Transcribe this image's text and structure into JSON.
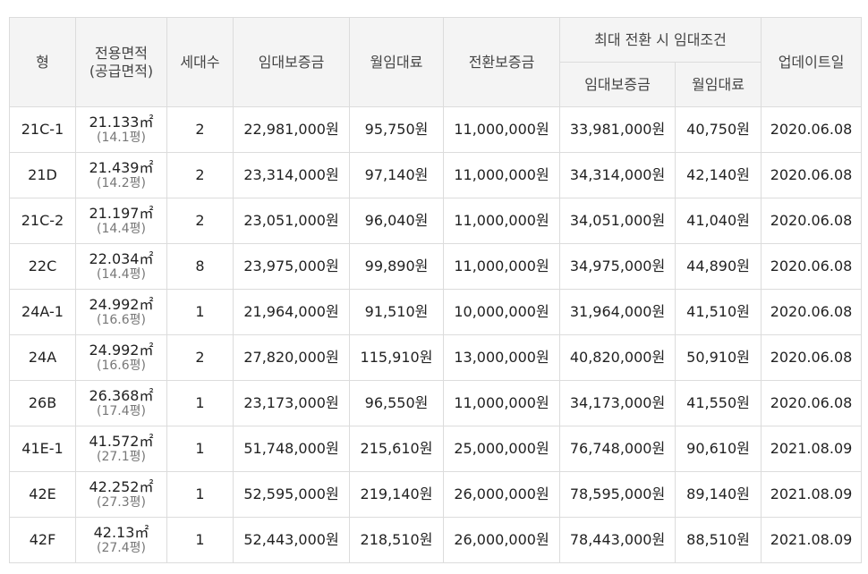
{
  "headers": {
    "type": "형",
    "area_line1": "전용면적",
    "area_line2": "(공급면적)",
    "households": "세대수",
    "deposit": "임대보증금",
    "monthly": "월임대료",
    "conversion_deposit": "전환보증금",
    "max_conversion_group": "최대 전환 시 임대조건",
    "max_deposit": "임대보증금",
    "max_monthly": "월임대료",
    "updated": "업데이트일"
  },
  "rows": [
    {
      "type": "21C-1",
      "area": "21.133㎡",
      "supply": "(14.1평)",
      "households": "2",
      "deposit": "22,981,000원",
      "monthly": "95,750원",
      "conversion": "11,000,000원",
      "max_deposit": "33,981,000원",
      "max_monthly": "40,750원",
      "updated": "2020.06.08"
    },
    {
      "type": "21D",
      "area": "21.439㎡",
      "supply": "(14.2평)",
      "households": "2",
      "deposit": "23,314,000원",
      "monthly": "97,140원",
      "conversion": "11,000,000원",
      "max_deposit": "34,314,000원",
      "max_monthly": "42,140원",
      "updated": "2020.06.08"
    },
    {
      "type": "21C-2",
      "area": "21.197㎡",
      "supply": "(14.4평)",
      "households": "2",
      "deposit": "23,051,000원",
      "monthly": "96,040원",
      "conversion": "11,000,000원",
      "max_deposit": "34,051,000원",
      "max_monthly": "41,040원",
      "updated": "2020.06.08"
    },
    {
      "type": "22C",
      "area": "22.034㎡",
      "supply": "(14.4평)",
      "households": "8",
      "deposit": "23,975,000원",
      "monthly": "99,890원",
      "conversion": "11,000,000원",
      "max_deposit": "34,975,000원",
      "max_monthly": "44,890원",
      "updated": "2020.06.08"
    },
    {
      "type": "24A-1",
      "area": "24.992㎡",
      "supply": "(16.6평)",
      "households": "1",
      "deposit": "21,964,000원",
      "monthly": "91,510원",
      "conversion": "10,000,000원",
      "max_deposit": "31,964,000원",
      "max_monthly": "41,510원",
      "updated": "2020.06.08"
    },
    {
      "type": "24A",
      "area": "24.992㎡",
      "supply": "(16.6평)",
      "households": "2",
      "deposit": "27,820,000원",
      "monthly": "115,910원",
      "conversion": "13,000,000원",
      "max_deposit": "40,820,000원",
      "max_monthly": "50,910원",
      "updated": "2020.06.08"
    },
    {
      "type": "26B",
      "area": "26.368㎡",
      "supply": "(17.4평)",
      "households": "1",
      "deposit": "23,173,000원",
      "monthly": "96,550원",
      "conversion": "11,000,000원",
      "max_deposit": "34,173,000원",
      "max_monthly": "41,550원",
      "updated": "2020.06.08"
    },
    {
      "type": "41E-1",
      "area": "41.572㎡",
      "supply": "(27.1평)",
      "households": "1",
      "deposit": "51,748,000원",
      "monthly": "215,610원",
      "conversion": "25,000,000원",
      "max_deposit": "76,748,000원",
      "max_monthly": "90,610원",
      "updated": "2021.08.09"
    },
    {
      "type": "42E",
      "area": "42.252㎡",
      "supply": "(27.3평)",
      "households": "1",
      "deposit": "52,595,000원",
      "monthly": "219,140원",
      "conversion": "26,000,000원",
      "max_deposit": "78,595,000원",
      "max_monthly": "89,140원",
      "updated": "2021.08.09"
    },
    {
      "type": "42F",
      "area": "42.13㎡",
      "supply": "(27.4평)",
      "households": "1",
      "deposit": "52,443,000원",
      "monthly": "218,510원",
      "conversion": "26,000,000원",
      "max_deposit": "78,443,000원",
      "max_monthly": "88,510원",
      "updated": "2021.08.09"
    }
  ]
}
